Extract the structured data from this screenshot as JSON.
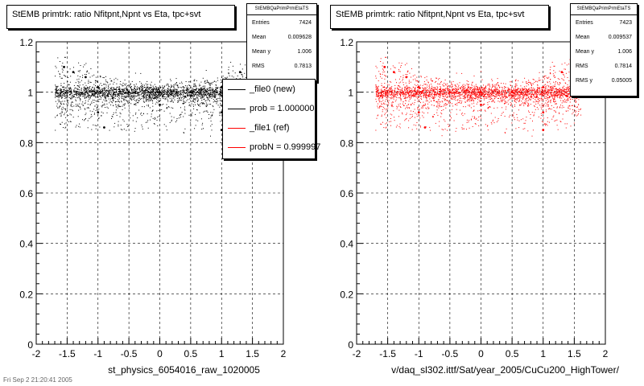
{
  "panels": [
    {
      "title": "StEMB primtrk: ratio Nfitpnt,Npnt vs Eta, tpc+svt",
      "stats": {
        "name": "StEMBQaPrimPrmEtaTS",
        "rows": [
          {
            "label": "Entries",
            "value": "7424"
          },
          {
            "label": "Mean",
            "value": "0.009628"
          },
          {
            "label": "Mean y",
            "value": "1.006"
          },
          {
            "label": "RMS",
            "value": "0.7813"
          }
        ]
      },
      "legend": [
        {
          "label": "_file0 (new)",
          "color": "#000000"
        },
        {
          "label": "prob = 1.000000",
          "color": "#000000"
        },
        {
          "label": "_file1 (ref)",
          "color": "#ff0000"
        },
        {
          "label": "probN = 0.999997",
          "color": "#ff0000"
        }
      ],
      "xlabel": "st_physics_6054016_raw_1020005"
    },
    {
      "title": "StEMB primtrk: ratio Nfitpnt,Npnt vs Eta, tpc+svt",
      "stats": {
        "name": "StEMBQaPrimPrmEtaTS",
        "rows": [
          {
            "label": "Entries",
            "value": "7423"
          },
          {
            "label": "Mean",
            "value": "0.009537"
          },
          {
            "label": "Mean y",
            "value": "1.006"
          },
          {
            "label": "RMS",
            "value": "0.7814"
          },
          {
            "label": "RMS y",
            "value": "0.05005"
          }
        ]
      },
      "xlabel": "v/daq_sl302.ittf/Sat/year_2005/CuCu200_HighTower/"
    }
  ],
  "footer": "Fri Sep 2 21:20:41 2005",
  "chart_data": [
    {
      "type": "scatter",
      "title": "StEMB primtrk: ratio Nfitpnt,Npnt vs Eta, tpc+svt",
      "xlabel": "st_physics_6054016_raw_1020005",
      "ylabel": "",
      "xlim": [
        -2,
        2
      ],
      "ylim": [
        0,
        1.2
      ],
      "x_ticks": [
        "-2",
        "-1.5",
        "-1",
        "-0.5",
        "0",
        "0.5",
        "1",
        "1.5",
        "2"
      ],
      "y_ticks": [
        "0",
        "0.2",
        "0.4",
        "0.6",
        "0.8",
        "1",
        "1.2"
      ],
      "grid": true,
      "color": "#000000",
      "series": [
        {
          "name": "_file0 (new)",
          "values": [
            {
              "x": -1.55,
              "y": 1.1
            },
            {
              "x": -1.4,
              "y": 1.08
            },
            {
              "x": -1.2,
              "y": 1.06
            },
            {
              "x": -1.0,
              "y": 1.02
            },
            {
              "x": -0.5,
              "y": 1.0
            },
            {
              "x": 0.0,
              "y": 1.0
            },
            {
              "x": 0.5,
              "y": 1.0
            },
            {
              "x": 1.0,
              "y": 1.02
            },
            {
              "x": 1.3,
              "y": 1.08
            },
            {
              "x": 1.5,
              "y": 1.1
            },
            {
              "x": -1.0,
              "y": 0.92
            },
            {
              "x": 0.0,
              "y": 0.95
            },
            {
              "x": 1.0,
              "y": 0.92
            },
            {
              "x": -0.9,
              "y": 0.86
            },
            {
              "x": 1.0,
              "y": 0.85
            }
          ]
        }
      ]
    },
    {
      "type": "scatter",
      "title": "StEMB primtrk: ratio Nfitpnt,Npnt vs Eta, tpc+svt",
      "xlabel": "v/daq_sl302.ittf/Sat/year_2005/CuCu200_HighTower/",
      "ylabel": "",
      "xlim": [
        -2,
        2
      ],
      "ylim": [
        0,
        1.2
      ],
      "x_ticks": [
        "-2",
        "-1.5",
        "-1",
        "-0.5",
        "0",
        "0.5",
        "1",
        "1.5",
        "2"
      ],
      "y_ticks": [
        "0",
        "0.2",
        "0.4",
        "0.6",
        "0.8",
        "1",
        "1.2"
      ],
      "grid": true,
      "color": "#ff0000",
      "series": [
        {
          "name": "_file1 (ref)",
          "values": [
            {
              "x": -1.55,
              "y": 1.1
            },
            {
              "x": -1.4,
              "y": 1.08
            },
            {
              "x": -1.2,
              "y": 1.06
            },
            {
              "x": -1.0,
              "y": 1.02
            },
            {
              "x": -0.5,
              "y": 1.0
            },
            {
              "x": 0.0,
              "y": 1.0
            },
            {
              "x": 0.5,
              "y": 1.0
            },
            {
              "x": 1.0,
              "y": 1.02
            },
            {
              "x": 1.3,
              "y": 1.08
            },
            {
              "x": 1.5,
              "y": 1.1
            },
            {
              "x": -1.0,
              "y": 0.92
            },
            {
              "x": 0.0,
              "y": 0.95
            },
            {
              "x": 1.0,
              "y": 0.92
            },
            {
              "x": -0.9,
              "y": 0.86
            },
            {
              "x": 1.0,
              "y": 0.85
            }
          ]
        }
      ]
    }
  ]
}
